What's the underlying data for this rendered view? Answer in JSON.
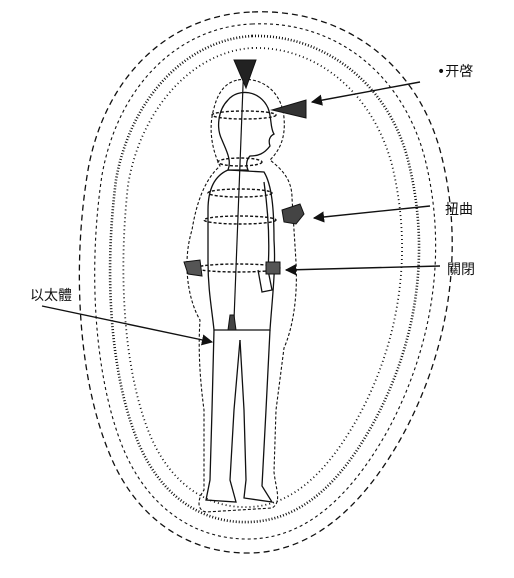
{
  "labels": {
    "opening": "•开啓",
    "twist": "扭曲",
    "closed": "關閉",
    "etheric": "以太體"
  },
  "colors": {
    "ink": "#111111",
    "background": "#ffffff"
  }
}
